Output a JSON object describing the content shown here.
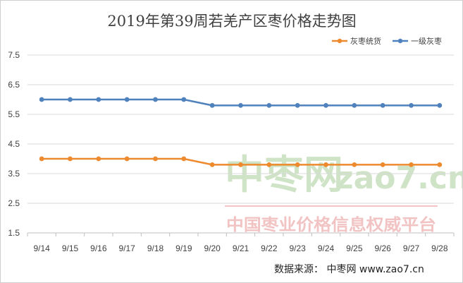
{
  "chart_data": {
    "type": "line",
    "title": "2019年第39周若羌产区枣价格走势图",
    "categories": [
      "9/14",
      "9/15",
      "9/16",
      "9/17",
      "9/18",
      "9/19",
      "9/20",
      "9/21",
      "9/22",
      "9/23",
      "9/24",
      "9/25",
      "9/26",
      "9/27",
      "9/28"
    ],
    "series": [
      {
        "name": "灰枣统货",
        "color": "#ED8A2E",
        "values": [
          4.0,
          4.0,
          4.0,
          4.0,
          4.0,
          4.0,
          3.8,
          3.8,
          3.8,
          3.8,
          3.8,
          3.8,
          3.8,
          3.8,
          3.8
        ]
      },
      {
        "name": "一级灰枣",
        "color": "#4F81BD",
        "values": [
          6.0,
          6.0,
          6.0,
          6.0,
          6.0,
          6.0,
          5.8,
          5.8,
          5.8,
          5.8,
          5.8,
          5.8,
          5.8,
          5.8,
          5.8
        ]
      }
    ],
    "yticks": [
      "1.5",
      "2.5",
      "3.5",
      "4.5",
      "5.5",
      "6.5",
      "7.5"
    ],
    "ylim": [
      1.5,
      7.5
    ],
    "grid": true,
    "legend_position": "top-right",
    "gridColor": "#d9d9d9"
  },
  "watermark": {
    "brand": "中枣网",
    "domain": "zao7.cn",
    "tagline": "中国枣业价格信息权威平台",
    "color": "#cfe3c6",
    "accent": "#f2c3c3"
  },
  "source_text": "数据来源：  中枣网 www.zao7.cn"
}
